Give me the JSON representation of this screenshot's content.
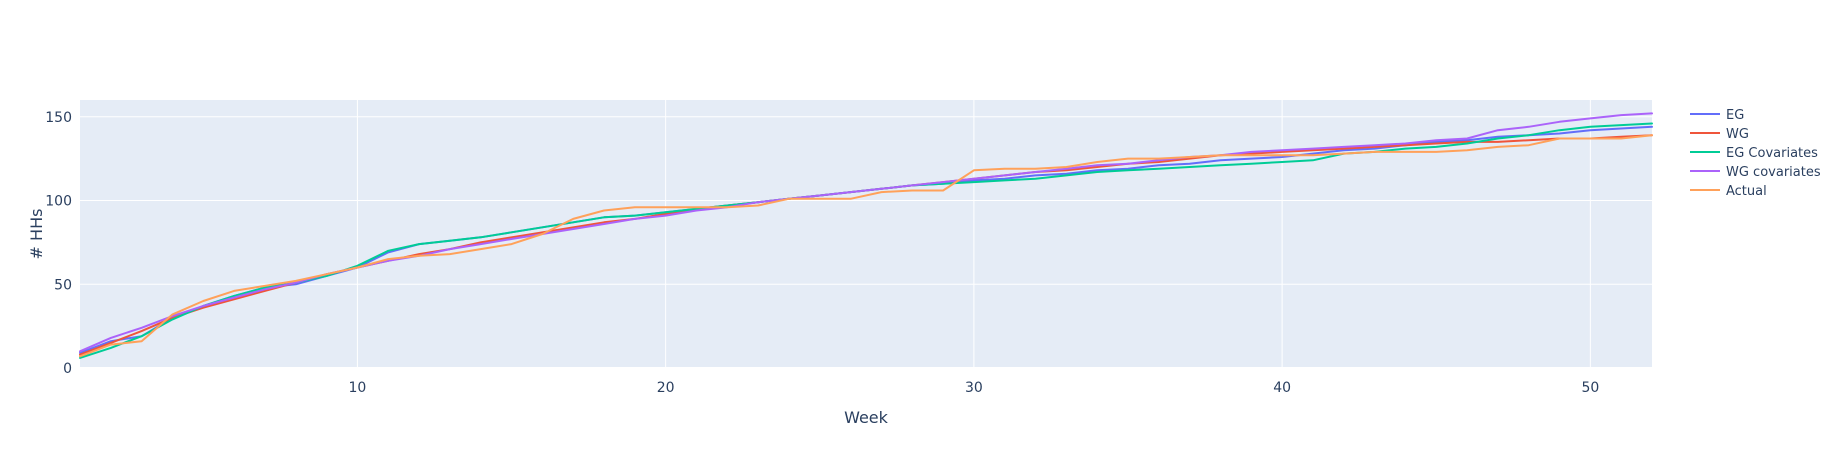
{
  "chart_data": {
    "type": "line",
    "title": "",
    "xlabel": "Week",
    "ylabel": "# HHs",
    "xlim": [
      1,
      52
    ],
    "ylim": [
      0,
      160
    ],
    "xticks": [
      10,
      20,
      30,
      40,
      50
    ],
    "yticks": [
      0,
      50,
      100,
      150
    ],
    "grid": true,
    "legend_position": "right",
    "x": [
      1,
      2,
      3,
      4,
      5,
      6,
      7,
      8,
      9,
      10,
      11,
      12,
      13,
      14,
      15,
      16,
      17,
      18,
      19,
      20,
      21,
      22,
      23,
      24,
      25,
      26,
      27,
      28,
      29,
      30,
      31,
      32,
      33,
      34,
      35,
      36,
      37,
      38,
      39,
      40,
      41,
      42,
      43,
      44,
      45,
      46,
      47,
      48,
      49,
      50,
      51,
      52
    ],
    "series": [
      {
        "name": "EG",
        "color": "#636efa",
        "values": [
          9,
          16,
          19,
          30,
          37,
          43,
          48,
          50,
          55,
          60,
          69,
          74,
          76,
          78,
          81,
          84,
          87,
          90,
          91,
          93,
          95,
          97,
          99,
          101,
          103,
          105,
          107,
          109,
          110,
          112,
          113,
          115,
          116,
          118,
          119,
          121,
          122,
          124,
          125,
          126,
          128,
          130,
          131,
          133,
          135,
          136,
          138,
          139,
          140,
          142,
          143,
          144
        ]
      },
      {
        "name": "WG",
        "color": "#ef553b",
        "values": [
          8,
          15,
          22,
          30,
          36,
          41,
          46,
          51,
          56,
          60,
          64,
          68,
          71,
          75,
          78,
          81,
          84,
          87,
          89,
          92,
          95,
          97,
          99,
          101,
          103,
          105,
          107,
          109,
          111,
          113,
          115,
          117,
          118,
          120,
          122,
          123,
          125,
          127,
          128,
          129,
          130,
          131,
          132,
          133,
          134,
          135,
          135,
          136,
          137,
          137,
          138,
          139
        ]
      },
      {
        "name": "EG Covariates",
        "color": "#00cc96",
        "values": [
          6,
          12,
          19,
          29,
          37,
          43,
          48,
          51,
          55,
          61,
          70,
          74,
          76,
          78,
          81,
          84,
          87,
          90,
          91,
          93,
          95,
          97,
          99,
          101,
          103,
          105,
          107,
          109,
          110,
          111,
          112,
          113,
          115,
          117,
          118,
          119,
          120,
          121,
          122,
          123,
          124,
          128,
          129,
          131,
          132,
          134,
          137,
          139,
          142,
          144,
          145,
          146
        ]
      },
      {
        "name": "WG covariates",
        "color": "#ab63fa",
        "values": [
          10,
          18,
          24,
          31,
          37,
          42,
          47,
          51,
          56,
          60,
          64,
          67,
          71,
          74,
          77,
          80,
          83,
          86,
          89,
          91,
          94,
          96,
          99,
          101,
          103,
          105,
          107,
          109,
          111,
          113,
          115,
          117,
          119,
          121,
          122,
          124,
          126,
          127,
          129,
          130,
          131,
          132,
          133,
          134,
          136,
          137,
          142,
          144,
          147,
          149,
          151,
          152
        ]
      },
      {
        "name": "Actual",
        "color": "#ffa15a",
        "values": [
          7,
          14,
          16,
          32,
          40,
          46,
          49,
          52,
          56,
          60,
          65,
          67,
          68,
          71,
          74,
          80,
          89,
          94,
          96,
          96,
          96,
          96,
          97,
          101,
          101,
          101,
          105,
          106,
          106,
          118,
          119,
          119,
          120,
          123,
          125,
          125,
          126,
          127,
          127,
          127,
          127,
          128,
          129,
          129,
          129,
          130,
          132,
          133,
          137,
          137,
          137,
          139
        ]
      }
    ]
  }
}
